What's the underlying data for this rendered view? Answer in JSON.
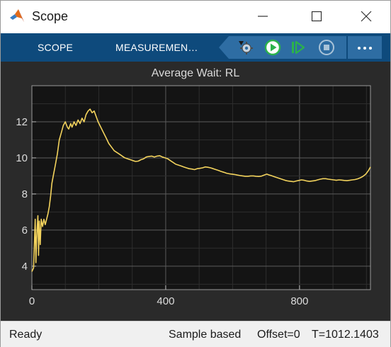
{
  "window": {
    "title": "Scope"
  },
  "toolstrip": {
    "tabs": [
      "SCOPE",
      "MEASUREMEN…"
    ],
    "buttons": [
      "settings-gear-icon",
      "run-icon",
      "step-forward-icon",
      "stop-icon"
    ],
    "more_icon": "more-options-icon",
    "colors": {
      "toolstrip": "#0e4a7c",
      "run": "#2bb34a",
      "stop": "#a9c3d8"
    }
  },
  "plot": {
    "title": "Average Wait: RL"
  },
  "chart_data": {
    "type": "line",
    "title": "Average Wait: RL",
    "xlabel": "",
    "ylabel": "",
    "xlim": [
      0,
      1012
    ],
    "ylim": [
      2.7,
      14
    ],
    "xticks": [
      0,
      400,
      800
    ],
    "yticks": [
      4,
      6,
      8,
      10,
      12
    ],
    "grid": true,
    "line_color": "#f3d35d",
    "series": [
      {
        "points": [
          [
            0,
            3.7
          ],
          [
            5,
            3.9
          ],
          [
            10,
            6.6
          ],
          [
            12,
            4.2
          ],
          [
            14,
            5.5
          ],
          [
            18,
            6.8
          ],
          [
            20,
            4.6
          ],
          [
            22,
            6.5
          ],
          [
            25,
            5.2
          ],
          [
            28,
            6.6
          ],
          [
            32,
            6.2
          ],
          [
            36,
            6.6
          ],
          [
            40,
            6.3
          ],
          [
            44,
            6.6
          ],
          [
            48,
            6.9
          ],
          [
            52,
            7.3
          ],
          [
            56,
            7.9
          ],
          [
            60,
            8.6
          ],
          [
            64,
            9.0
          ],
          [
            70,
            9.6
          ],
          [
            76,
            10.2
          ],
          [
            82,
            11.0
          ],
          [
            88,
            11.4
          ],
          [
            94,
            11.8
          ],
          [
            100,
            12.0
          ],
          [
            106,
            11.7
          ],
          [
            110,
            11.6
          ],
          [
            116,
            11.9
          ],
          [
            120,
            11.7
          ],
          [
            126,
            12.0
          ],
          [
            132,
            11.8
          ],
          [
            138,
            12.1
          ],
          [
            144,
            11.9
          ],
          [
            150,
            12.2
          ],
          [
            156,
            12.0
          ],
          [
            162,
            12.4
          ],
          [
            168,
            12.6
          ],
          [
            174,
            12.7
          ],
          [
            180,
            12.5
          ],
          [
            186,
            12.6
          ],
          [
            192,
            12.3
          ],
          [
            198,
            12.0
          ],
          [
            206,
            11.7
          ],
          [
            214,
            11.4
          ],
          [
            222,
            11.1
          ],
          [
            230,
            10.8
          ],
          [
            238,
            10.6
          ],
          [
            246,
            10.4
          ],
          [
            254,
            10.3
          ],
          [
            262,
            10.2
          ],
          [
            270,
            10.1
          ],
          [
            278,
            10.0
          ],
          [
            286,
            9.95
          ],
          [
            294,
            9.9
          ],
          [
            302,
            9.85
          ],
          [
            310,
            9.8
          ],
          [
            318,
            9.82
          ],
          [
            326,
            9.9
          ],
          [
            334,
            9.95
          ],
          [
            342,
            10.05
          ],
          [
            350,
            10.08
          ],
          [
            358,
            10.1
          ],
          [
            366,
            10.05
          ],
          [
            374,
            10.1
          ],
          [
            382,
            10.12
          ],
          [
            390,
            10.05
          ],
          [
            398,
            10.0
          ],
          [
            406,
            9.95
          ],
          [
            414,
            9.85
          ],
          [
            422,
            9.75
          ],
          [
            430,
            9.65
          ],
          [
            438,
            9.6
          ],
          [
            446,
            9.55
          ],
          [
            454,
            9.5
          ],
          [
            462,
            9.45
          ],
          [
            470,
            9.4
          ],
          [
            478,
            9.38
          ],
          [
            486,
            9.35
          ],
          [
            494,
            9.4
          ],
          [
            502,
            9.42
          ],
          [
            510,
            9.45
          ],
          [
            518,
            9.5
          ],
          [
            526,
            9.48
          ],
          [
            534,
            9.45
          ],
          [
            542,
            9.4
          ],
          [
            550,
            9.35
          ],
          [
            558,
            9.3
          ],
          [
            566,
            9.25
          ],
          [
            574,
            9.2
          ],
          [
            582,
            9.15
          ],
          [
            590,
            9.12
          ],
          [
            598,
            9.1
          ],
          [
            606,
            9.08
          ],
          [
            614,
            9.05
          ],
          [
            622,
            9.02
          ],
          [
            630,
            9.0
          ],
          [
            638,
            8.98
          ],
          [
            646,
            8.98
          ],
          [
            654,
            9.0
          ],
          [
            662,
            9.0
          ],
          [
            670,
            8.98
          ],
          [
            678,
            8.97
          ],
          [
            686,
            8.99
          ],
          [
            694,
            9.05
          ],
          [
            702,
            9.1
          ],
          [
            710,
            9.05
          ],
          [
            718,
            9.0
          ],
          [
            726,
            8.95
          ],
          [
            734,
            8.9
          ],
          [
            742,
            8.85
          ],
          [
            750,
            8.8
          ],
          [
            758,
            8.75
          ],
          [
            766,
            8.72
          ],
          [
            774,
            8.7
          ],
          [
            782,
            8.68
          ],
          [
            790,
            8.72
          ],
          [
            798,
            8.75
          ],
          [
            806,
            8.78
          ],
          [
            814,
            8.76
          ],
          [
            822,
            8.72
          ],
          [
            830,
            8.7
          ],
          [
            838,
            8.72
          ],
          [
            846,
            8.74
          ],
          [
            854,
            8.78
          ],
          [
            862,
            8.82
          ],
          [
            870,
            8.85
          ],
          [
            878,
            8.85
          ],
          [
            886,
            8.82
          ],
          [
            894,
            8.8
          ],
          [
            902,
            8.78
          ],
          [
            910,
            8.76
          ],
          [
            918,
            8.78
          ],
          [
            926,
            8.77
          ],
          [
            934,
            8.75
          ],
          [
            942,
            8.74
          ],
          [
            950,
            8.76
          ],
          [
            958,
            8.78
          ],
          [
            966,
            8.8
          ],
          [
            974,
            8.84
          ],
          [
            982,
            8.9
          ],
          [
            990,
            8.98
          ],
          [
            998,
            9.1
          ],
          [
            1006,
            9.3
          ],
          [
            1012,
            9.5
          ]
        ]
      }
    ]
  },
  "status": {
    "left": "Ready",
    "sample": "Sample based",
    "offset": "Offset=0",
    "time": "T=1012.1403"
  }
}
